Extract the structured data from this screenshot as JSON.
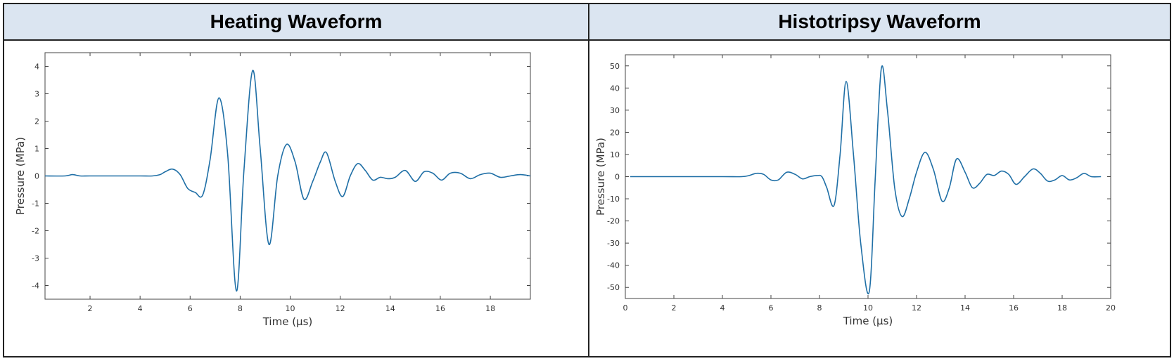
{
  "colors": {
    "header_bg": "#dbe5f1",
    "line": "#1f6fa6",
    "axis": "#444444",
    "border": "#222222"
  },
  "chart_data": [
    {
      "type": "line",
      "title": "Heating Waveform",
      "xlabel": "Time (μs)",
      "ylabel": "Pressure (MPa)",
      "xlim": [
        0.2,
        19.6
      ],
      "ylim": [
        -4.5,
        4.5
      ],
      "xticks": [
        2,
        4,
        6,
        8,
        10,
        12,
        14,
        16,
        18
      ],
      "yticks": [
        -4,
        -3,
        -2,
        -1,
        0,
        1,
        2,
        3,
        4
      ],
      "grid": false,
      "series": [
        {
          "x": [
            0.2,
            1.0,
            1.3,
            1.6,
            2.0,
            3.0,
            4.0,
            4.5,
            4.8,
            5.0,
            5.3,
            5.6,
            5.9,
            6.2,
            6.5,
            6.8,
            7.15,
            7.5,
            7.85,
            8.15,
            8.5,
            8.8,
            9.15,
            9.5,
            9.85,
            10.2,
            10.55,
            10.9,
            11.2,
            11.45,
            11.8,
            12.1,
            12.4,
            12.7,
            13.0,
            13.3,
            13.6,
            13.9,
            14.2,
            14.6,
            15.0,
            15.35,
            15.7,
            16.05,
            16.4,
            16.8,
            17.2,
            17.6,
            18.0,
            18.4,
            18.8,
            19.2,
            19.6
          ],
          "y": [
            0.0,
            0.0,
            0.05,
            0.0,
            0.0,
            0.0,
            0.0,
            0.0,
            0.05,
            0.15,
            0.25,
            0.05,
            -0.45,
            -0.6,
            -0.7,
            0.6,
            2.85,
            0.8,
            -4.2,
            0.2,
            3.85,
            1.0,
            -2.5,
            0.0,
            1.15,
            0.5,
            -0.85,
            -0.2,
            0.5,
            0.85,
            -0.2,
            -0.75,
            0.0,
            0.45,
            0.2,
            -0.15,
            -0.05,
            -0.1,
            -0.05,
            0.2,
            -0.2,
            0.15,
            0.1,
            -0.15,
            0.1,
            0.1,
            -0.1,
            0.05,
            0.1,
            -0.05,
            0.0,
            0.05,
            0.0
          ]
        }
      ]
    },
    {
      "type": "line",
      "title": "Histotripsy Waveform",
      "xlabel": "Time (μs)",
      "ylabel": "Pressure (MPa)",
      "xlim": [
        0,
        20
      ],
      "ylim": [
        -55,
        55
      ],
      "xticks": [
        0,
        2,
        4,
        6,
        8,
        10,
        12,
        14,
        16,
        18,
        20
      ],
      "yticks": [
        -50,
        -40,
        -30,
        -20,
        -10,
        0,
        10,
        20,
        30,
        40,
        50
      ],
      "grid": false,
      "series": [
        {
          "x": [
            0.2,
            2.0,
            4.0,
            4.8,
            5.1,
            5.4,
            5.7,
            6.0,
            6.3,
            6.65,
            7.0,
            7.3,
            7.6,
            7.9,
            8.1,
            8.3,
            8.6,
            8.85,
            9.1,
            9.4,
            9.7,
            10.05,
            10.3,
            10.55,
            10.8,
            11.1,
            11.4,
            11.7,
            12.0,
            12.35,
            12.7,
            13.05,
            13.35,
            13.65,
            14.0,
            14.3,
            14.6,
            14.9,
            15.2,
            15.5,
            15.8,
            16.1,
            16.45,
            16.8,
            17.1,
            17.4,
            17.7,
            18.0,
            18.3,
            18.6,
            18.9,
            19.2,
            19.6
          ],
          "y": [
            0.0,
            0.0,
            0.0,
            0.0,
            0.5,
            1.5,
            1.0,
            -1.5,
            -1.5,
            2.0,
            1.0,
            -1.0,
            0.0,
            0.5,
            0.0,
            -5.0,
            -13.0,
            10.0,
            43.0,
            10.0,
            -30.0,
            -52.0,
            0.0,
            49.0,
            30.0,
            -5.0,
            -18.0,
            -10.0,
            2.0,
            11.0,
            3.0,
            -11.0,
            -5.0,
            8.0,
            2.0,
            -5.0,
            -3.0,
            1.0,
            0.5,
            2.5,
            1.0,
            -3.5,
            0.0,
            3.5,
            1.5,
            -2.0,
            -1.5,
            0.5,
            -1.5,
            -0.5,
            1.5,
            0.0,
            0.0
          ]
        }
      ]
    }
  ]
}
